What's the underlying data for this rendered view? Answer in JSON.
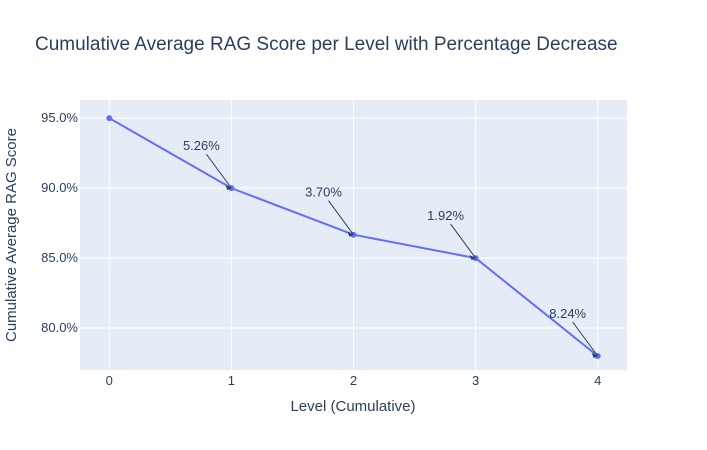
{
  "chart_data": {
    "type": "line",
    "title": "Cumulative Average RAG Score per Level with Percentage Decrease",
    "xlabel": "Level (Cumulative)",
    "ylabel": "Cumulative Average RAG Score",
    "x": [
      0,
      1,
      2,
      3,
      4
    ],
    "x_tick_labels": [
      "0",
      "1",
      "2",
      "3",
      "4"
    ],
    "y_tick_labels": [
      "80.0%",
      "85.0%",
      "90.0%",
      "95.0%"
    ],
    "y_ticks": [
      0.8,
      0.85,
      0.9,
      0.95
    ],
    "ylim": [
      0.77,
      0.963
    ],
    "xlim": [
      -0.24,
      4.24
    ],
    "series": [
      {
        "values": [
          0.95,
          0.9,
          0.8667,
          0.85,
          0.78
        ]
      }
    ],
    "annotations": [
      {
        "x": 1,
        "text": "5.26%"
      },
      {
        "x": 2,
        "text": "3.70%"
      },
      {
        "x": 3,
        "text": "1.92%"
      },
      {
        "x": 4,
        "text": "8.24%"
      }
    ],
    "colors": {
      "line": "#636efa",
      "plot_bg": "#e5ecf6",
      "grid": "#ffffff",
      "text": "#2a3f5f"
    },
    "grid": true,
    "legend": "none"
  }
}
